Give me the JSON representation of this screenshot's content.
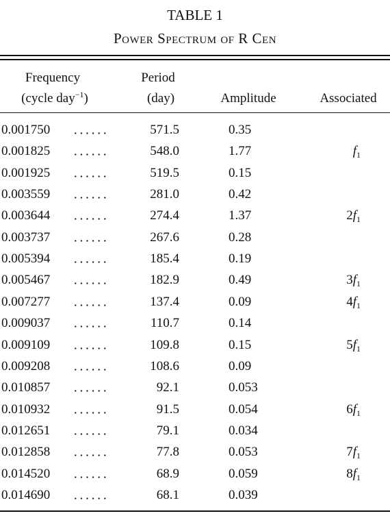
{
  "title": "TABLE 1",
  "subtitle": "Power Spectrum of R Cen",
  "table": {
    "header": {
      "frequency": {
        "line1": "Frequency",
        "line2": "(cycle day",
        "sup": "−1",
        "close": ")"
      },
      "period": {
        "line1": "Period",
        "line2": "(day)"
      },
      "amplitude": "Amplitude",
      "associated": "Associated"
    },
    "rows": [
      [
        "0.001750",
        "571.5",
        "0.35",
        null
      ],
      [
        "0.001825",
        "548.0",
        "1.77",
        {
          "coef": "",
          "sym": "f",
          "sub": "1"
        }
      ],
      [
        "0.001925",
        "519.5",
        "0.15",
        null
      ],
      [
        "0.003559",
        "281.0",
        "0.42",
        null
      ],
      [
        "0.003644",
        "274.4",
        "1.37",
        {
          "coef": "2",
          "sym": "f",
          "sub": "1"
        }
      ],
      [
        "0.003737",
        "267.6",
        "0.28",
        null
      ],
      [
        "0.005394",
        "185.4",
        "0.19",
        null
      ],
      [
        "0.005467",
        "182.9",
        "0.49",
        {
          "coef": "3",
          "sym": "f",
          "sub": "1"
        }
      ],
      [
        "0.007277",
        "137.4",
        "0.09",
        {
          "coef": "4",
          "sym": "f",
          "sub": "1"
        }
      ],
      [
        "0.009037",
        "110.7",
        "0.14",
        null
      ],
      [
        "0.009109",
        "109.8",
        "0.15",
        {
          "coef": "5",
          "sym": "f",
          "sub": "1"
        }
      ],
      [
        "0.009208",
        "108.6",
        "0.09",
        null
      ],
      [
        "0.010857",
        "92.1",
        "0.053",
        null
      ],
      [
        "0.010932",
        "91.5",
        "0.054",
        {
          "coef": "6",
          "sym": "f",
          "sub": "1"
        }
      ],
      [
        "0.012651",
        "79.1",
        "0.034",
        null
      ],
      [
        "0.012858",
        "77.8",
        "0.053",
        {
          "coef": "7",
          "sym": "f",
          "sub": "1"
        }
      ],
      [
        "0.014520",
        "68.9",
        "0.059",
        {
          "coef": "8",
          "sym": "f",
          "sub": "1"
        }
      ],
      [
        "0.014690",
        "68.1",
        "0.039",
        null
      ]
    ]
  }
}
